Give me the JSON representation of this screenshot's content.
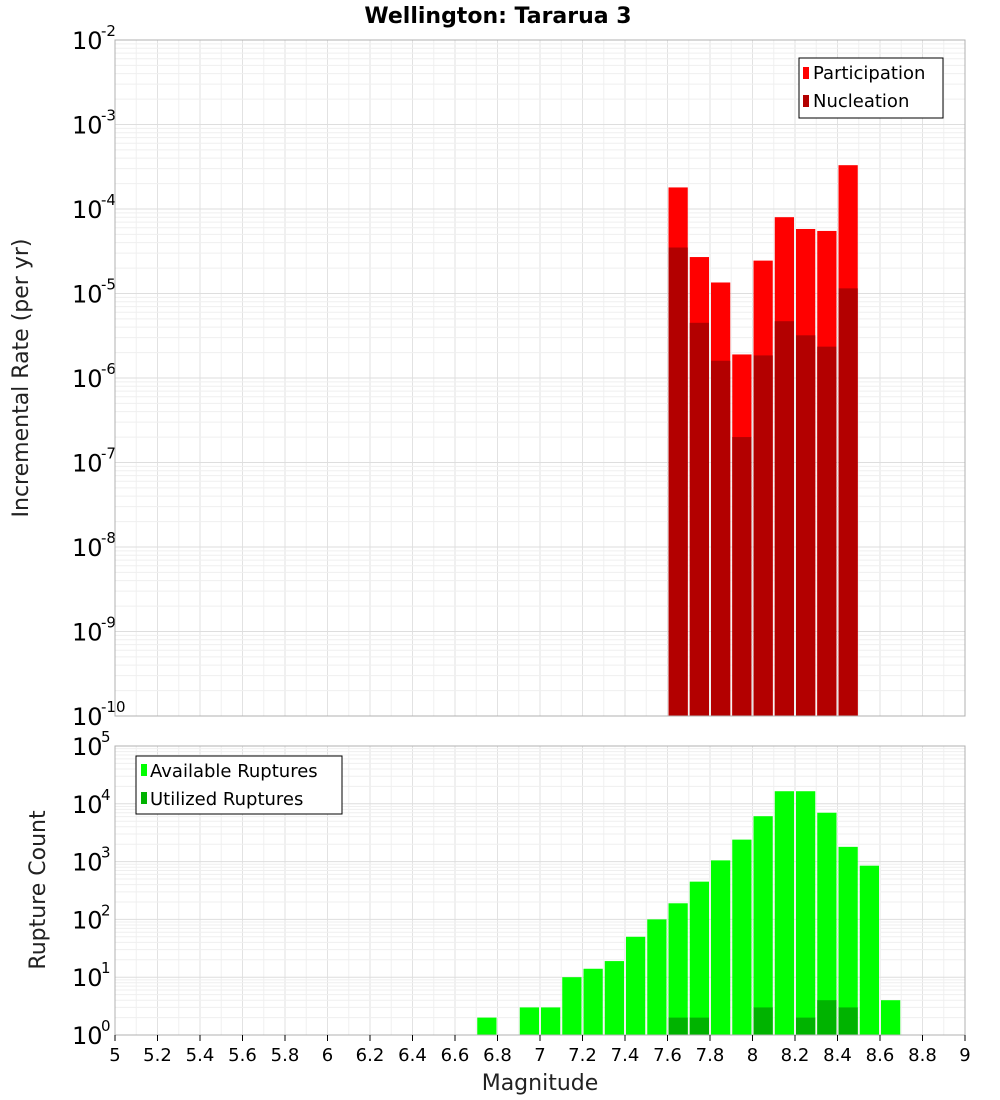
{
  "chart_data": {
    "title": "Wellington: Tararua 3",
    "xlabel": "Magnitude",
    "x_ticks": [
      "5",
      "5.2",
      "5.4",
      "5.6",
      "5.8",
      "6",
      "6.2",
      "6.4",
      "6.6",
      "6.8",
      "7",
      "7.2",
      "7.4",
      "7.6",
      "7.8",
      "8",
      "8.2",
      "8.4",
      "8.6",
      "8.8",
      "9"
    ],
    "xlim": [
      5,
      9
    ],
    "bin_width": 0.1,
    "grid": true,
    "panels": [
      {
        "type": "bar",
        "ylabel": "Incremental Rate (per yr)",
        "yscale": "log",
        "ylim_exp": [
          -10,
          -2
        ],
        "legend_position": "top-right",
        "series": [
          {
            "name": "Participation",
            "color": "#ff0000",
            "x": [
              7.65,
              7.75,
              7.85,
              7.95,
              8.05,
              8.15,
              8.25,
              8.35,
              8.45
            ],
            "values": [
              0.00018,
              2.7e-05,
              1.35e-05,
              1.9e-06,
              2.45e-05,
              8e-05,
              5.8e-05,
              5.5e-05,
              0.00033
            ]
          },
          {
            "name": "Nucleation",
            "color": "#b30000",
            "x": [
              7.65,
              7.75,
              7.85,
              7.95,
              8.05,
              8.15,
              8.25,
              8.35,
              8.45
            ],
            "values": [
              3.5e-05,
              4.5e-06,
              1.6e-06,
              2e-07,
              1.85e-06,
              4.7e-06,
              3.2e-06,
              2.35e-06,
              1.15e-05
            ]
          }
        ]
      },
      {
        "type": "bar",
        "ylabel": "Rupture Count",
        "yscale": "log",
        "ylim_exp": [
          0,
          5
        ],
        "legend_position": "top-left",
        "series": [
          {
            "name": "Available Ruptures",
            "color": "#00ff00",
            "x": [
              6.75,
              6.95,
              7.05,
              7.15,
              7.25,
              7.35,
              7.45,
              7.55,
              7.65,
              7.75,
              7.85,
              7.95,
              8.05,
              8.15,
              8.25,
              8.35,
              8.45,
              8.55,
              8.65
            ],
            "values": [
              2,
              3,
              3,
              10,
              14,
              19,
              50,
              100,
              190,
              450,
              1050,
              2400,
              6100,
              16500,
              16500,
              7000,
              1800,
              850,
              4
            ]
          },
          {
            "name": "Utilized Ruptures",
            "color": "#00b300",
            "x": [
              7.65,
              7.75,
              7.85,
              7.95,
              8.05,
              8.15,
              8.25,
              8.35,
              8.45
            ],
            "values": [
              2,
              2,
              1,
              1,
              3,
              1,
              2,
              4,
              3
            ]
          }
        ]
      }
    ]
  }
}
